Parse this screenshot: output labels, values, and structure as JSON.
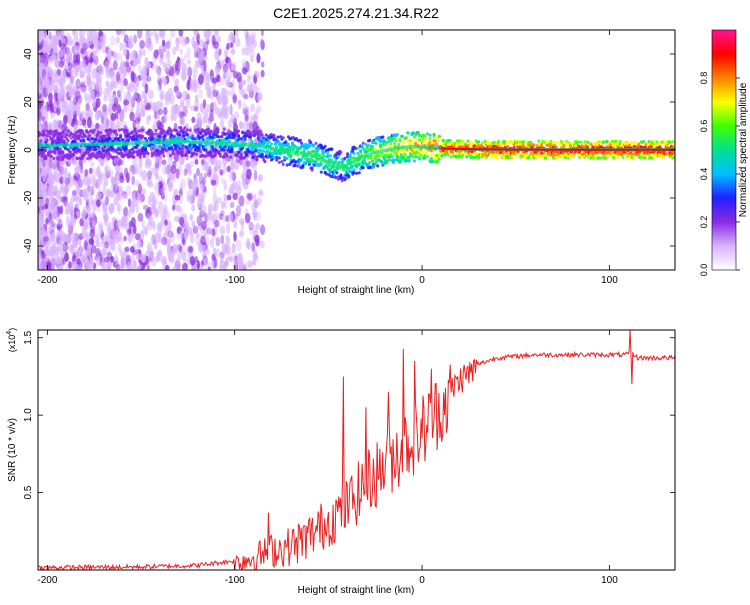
{
  "title": "C2E1.2025.274.21.34.R22",
  "spectrogram": {
    "type": "heatmap",
    "xlabel": "Height of straight line (km)",
    "ylabel": "Frequency (Hz)",
    "xlim": [
      -205,
      135
    ],
    "ylim": [
      -50,
      50
    ],
    "xticks": [
      -200,
      -100,
      0,
      100
    ],
    "xtick_labels": [
      "-200",
      "-100",
      "0",
      "100"
    ],
    "yticks": [
      -40,
      -20,
      0,
      20,
      40
    ],
    "ytick_labels": [
      "-40",
      "-20",
      "0",
      "20",
      "40"
    ],
    "colorbar": {
      "label": "Normalized spectral amplitude",
      "range": [
        0,
        1
      ],
      "ticks": [
        0.0,
        0.2,
        0.4,
        0.6,
        0.8
      ],
      "tick_labels": [
        "0.0",
        "0.2",
        "0.4",
        "0.6",
        "0.8"
      ],
      "colormap": [
        "#ffffff",
        "#d9b3ff",
        "#8a2be2",
        "#2020ff",
        "#00bfff",
        "#00e090",
        "#40ff00",
        "#ffff00",
        "#ff8000",
        "#ff0000",
        "#ff1493"
      ]
    },
    "ridge": {
      "description_free": true,
      "x": [
        -190,
        -170,
        -150,
        -130,
        -110,
        -90,
        -75,
        -60,
        -50,
        -42,
        -35,
        -25,
        -15,
        -5,
        5,
        15,
        40,
        80,
        110,
        135
      ],
      "y": [
        2,
        2.5,
        3,
        3.5,
        3,
        2,
        0,
        -2,
        -5,
        -7,
        -4,
        -1,
        0.5,
        1.5,
        1,
        0.5,
        0.2,
        0.1,
        0.1,
        0.1
      ],
      "amplitude": [
        0.35,
        0.4,
        0.4,
        0.45,
        0.45,
        0.5,
        0.55,
        0.6,
        0.62,
        0.55,
        0.6,
        0.7,
        0.75,
        0.8,
        0.85,
        0.9,
        0.95,
        0.95,
        0.95,
        0.95
      ]
    }
  },
  "snr": {
    "type": "line",
    "xlabel": "Height of straight line (km)",
    "ylabel": "SNR (10 * v/v)",
    "multiplier": "(x10^4)",
    "multiplier_base": "(x10",
    "multiplier_exp": "4",
    "multiplier_close": ")",
    "xlim": [
      -205,
      135
    ],
    "ylim": [
      0,
      1.55
    ],
    "xticks": [
      -200,
      -100,
      0,
      100
    ],
    "xtick_labels": [
      "-200",
      "-100",
      "0",
      "100"
    ],
    "yticks": [
      0.5,
      1.0,
      1.5
    ],
    "ytick_labels": [
      "0.5",
      "1.0",
      "1.5"
    ],
    "color": "#e82020",
    "envelope": {
      "x": [
        -205,
        -150,
        -120,
        -100,
        -90,
        -80,
        -70,
        -60,
        -50,
        -40,
        -30,
        -20,
        -10,
        0,
        10,
        20,
        30,
        40,
        60,
        90,
        108,
        112,
        115,
        135
      ],
      "y": [
        0.015,
        0.02,
        0.03,
        0.06,
        0.1,
        0.15,
        0.18,
        0.25,
        0.35,
        0.45,
        0.6,
        0.72,
        0.85,
        0.95,
        1.1,
        1.25,
        1.33,
        1.37,
        1.39,
        1.39,
        1.39,
        1.4,
        1.37,
        1.37
      ]
    },
    "spikes": [
      {
        "x": -82,
        "y": 0.37
      },
      {
        "x": -42,
        "y": 1.25
      },
      {
        "x": -30,
        "y": 1.05
      },
      {
        "x": -18,
        "y": 1.15
      },
      {
        "x": -10,
        "y": 1.43
      },
      {
        "x": -4,
        "y": 1.35
      },
      {
        "x": 5,
        "y": 1.3
      },
      {
        "x": 111,
        "y": 1.55
      },
      {
        "x": 112,
        "y": 1.2
      }
    ]
  }
}
